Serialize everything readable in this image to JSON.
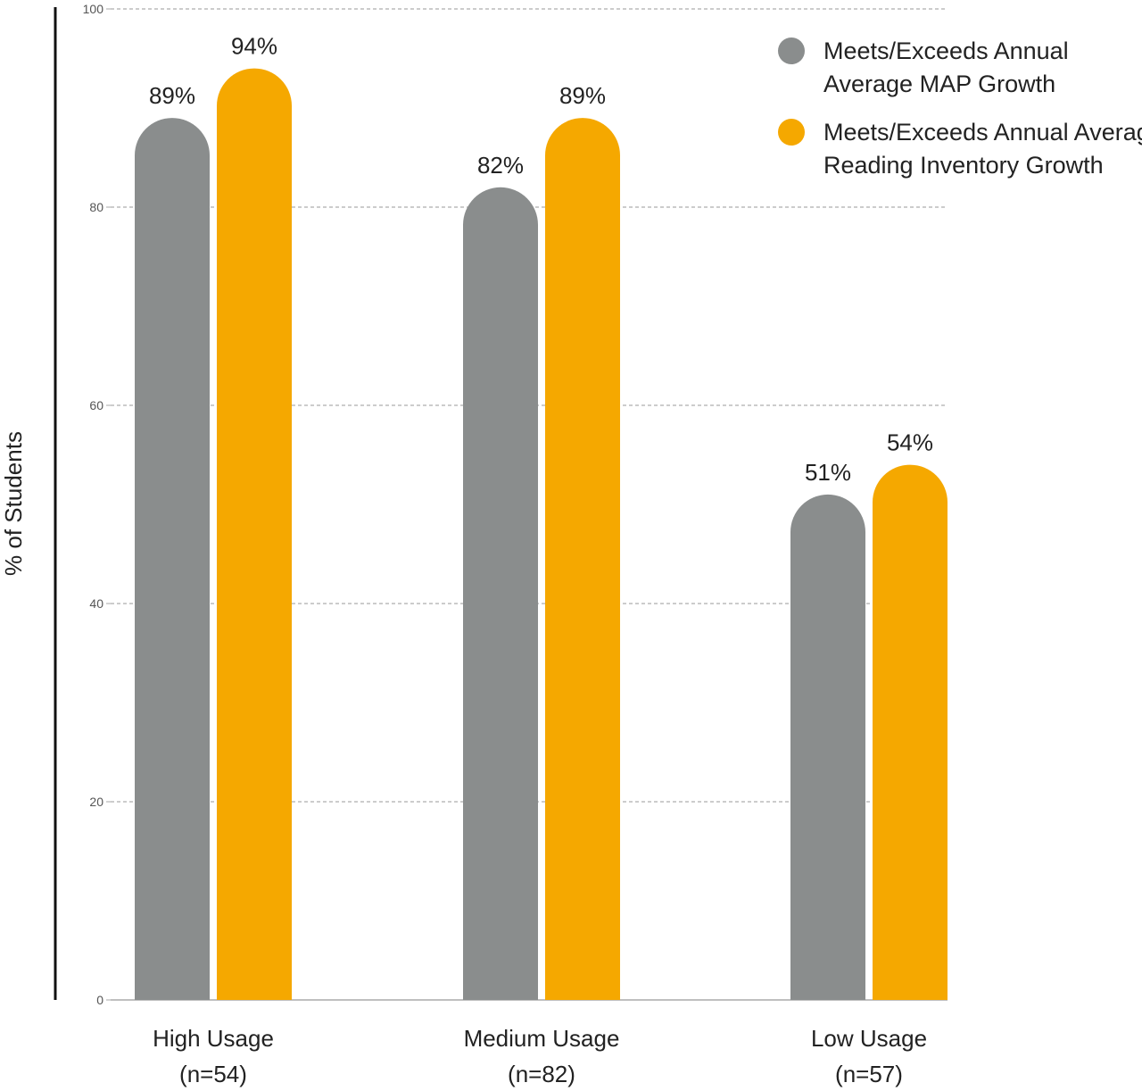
{
  "chart_data": {
    "type": "bar",
    "title": "",
    "xlabel": "",
    "ylabel": "% of Students",
    "ylim": [
      0,
      100
    ],
    "yticks": [
      0,
      20,
      40,
      60,
      80,
      100
    ],
    "grid": true,
    "legend_position": "top-right",
    "categories": [
      {
        "name": "High Usage",
        "sub": "(n=54)"
      },
      {
        "name": "Medium Usage",
        "sub": "(n=82)"
      },
      {
        "name": "Low Usage",
        "sub": "(n=57)"
      }
    ],
    "series": [
      {
        "name": "Meets/Exceeds Annual Average MAP Growth",
        "legend_lines": [
          "Meets/Exceeds Annual",
          "Average MAP Growth"
        ],
        "color": "#8a8d8d",
        "values": [
          89,
          82,
          51
        ],
        "labels": [
          "89%",
          "82%",
          "51%"
        ]
      },
      {
        "name": "Meets/Exceeds Annual Average Reading Inventory Growth",
        "legend_lines": [
          "Meets/Exceeds Annual Average",
          "Reading Inventory Growth"
        ],
        "color": "#f5a800",
        "values": [
          94,
          89,
          54
        ],
        "labels": [
          "94%",
          "89%",
          "54%"
        ]
      }
    ]
  }
}
